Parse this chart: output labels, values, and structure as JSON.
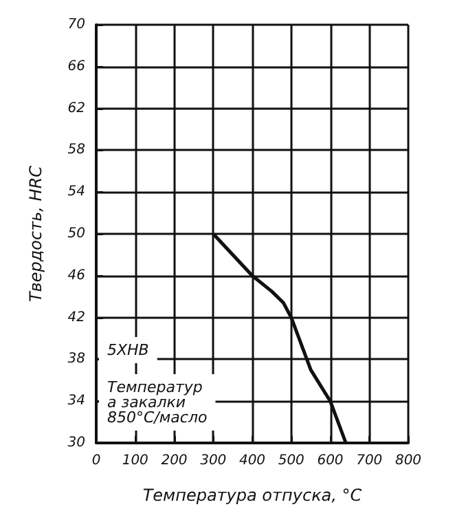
{
  "chart_data": {
    "type": "line",
    "xlabel": "Температура отпуска, °C",
    "ylabel": "Твердость, HRC",
    "annotations": [
      "5ХНВ",
      "Температура закалки 850°C/масло"
    ],
    "x": [
      300,
      400,
      450,
      480,
      500,
      520,
      550,
      600,
      640
    ],
    "series": [
      {
        "color": "#111111",
        "values": [
          50,
          46,
          44.5,
          43.4,
          42,
          40,
          37,
          34,
          30
        ]
      }
    ],
    "xlim": [
      0,
      800
    ],
    "xticks": [
      0,
      100,
      200,
      300,
      400,
      500,
      600,
      700,
      800
    ],
    "ylim": [
      30,
      70
    ],
    "yticks": [
      30,
      34,
      38,
      42,
      46,
      50,
      54,
      58,
      62,
      66,
      70
    ],
    "grid": true,
    "marker": "none",
    "line_style": "solid"
  }
}
